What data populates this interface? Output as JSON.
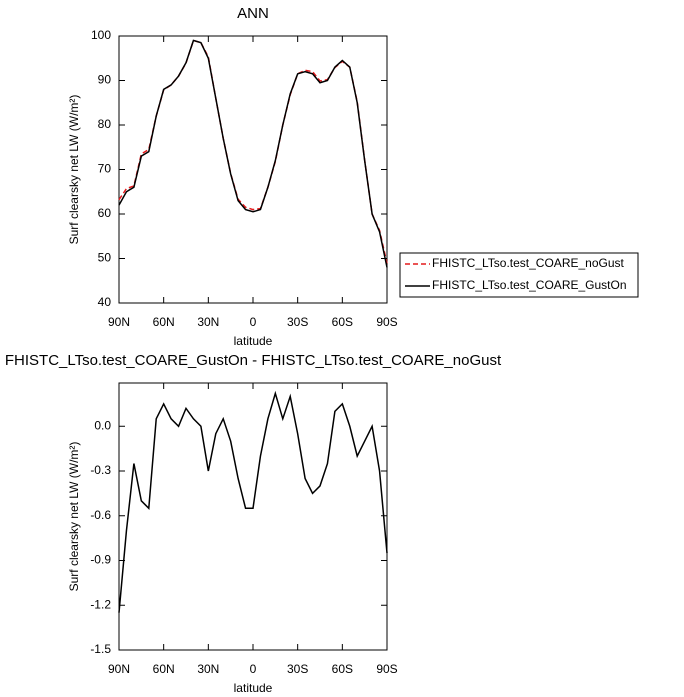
{
  "chart_data": [
    {
      "type": "line",
      "title": "ANN",
      "xlabel": "latitude",
      "ylabel": "Surf clearsky net LW (W/m²)",
      "x": [
        90,
        85,
        80,
        75,
        70,
        65,
        60,
        55,
        50,
        45,
        40,
        35,
        30,
        25,
        20,
        15,
        10,
        5,
        0,
        -5,
        -10,
        -15,
        -20,
        -25,
        -30,
        -35,
        -40,
        -45,
        -50,
        -55,
        -60,
        -65,
        -70,
        -75,
        -80,
        -85,
        -90
      ],
      "xlim": [
        90,
        -90
      ],
      "xticks": [
        {
          "value": 90,
          "label": "90N"
        },
        {
          "value": 60,
          "label": "60N"
        },
        {
          "value": 30,
          "label": "30N"
        },
        0,
        {
          "value": -30,
          "label": "30S"
        },
        {
          "value": -60,
          "label": "60S"
        },
        {
          "value": -90,
          "label": "90S"
        }
      ],
      "ylim": [
        40,
        100
      ],
      "yticks": [
        40,
        50,
        60,
        70,
        80,
        90,
        100
      ],
      "legend": "outside-right",
      "series": [
        {
          "name": "FHISTC_LTso.test_COARE_noGust",
          "color": "#e41a1c",
          "style": "dashed",
          "values": [
            63.2,
            65.7,
            66.3,
            73.5,
            74.5,
            82,
            87.9,
            89,
            91,
            93.9,
            99,
            98.5,
            95.3,
            86,
            77,
            69.1,
            63.3,
            61.5,
            61,
            61.2,
            66,
            71.8,
            80,
            86.8,
            91.5,
            92.3,
            92,
            89.9,
            90.2,
            92.9,
            94.3,
            93,
            85.2,
            72.1,
            60,
            56.3,
            48.9
          ]
        },
        {
          "name": "FHISTC_LTso.test_COARE_GustOn",
          "color": "#000000",
          "style": "solid",
          "values": [
            62,
            65,
            66,
            73,
            74,
            82,
            88,
            89,
            91,
            94,
            99,
            98.5,
            95,
            86,
            77,
            69,
            63,
            61,
            60.5,
            61,
            66,
            72,
            80,
            87,
            91.5,
            92,
            91.5,
            89.5,
            90,
            93,
            94.5,
            93,
            85,
            72,
            60,
            56,
            48
          ]
        }
      ]
    },
    {
      "type": "line",
      "title": "FHISTC_LTso.test_COARE_GustOn - FHISTC_LTso.test_COARE_noGust",
      "xlabel": "latitude",
      "ylabel": "Surf clearsky net LW (W/m²)",
      "x": [
        90,
        85,
        80,
        75,
        70,
        65,
        60,
        55,
        50,
        45,
        40,
        35,
        30,
        25,
        20,
        15,
        10,
        5,
        0,
        -5,
        -10,
        -15,
        -20,
        -25,
        -30,
        -35,
        -40,
        -45,
        -50,
        -55,
        -60,
        -65,
        -70,
        -75,
        -80,
        -85,
        -90
      ],
      "xlim": [
        90,
        -90
      ],
      "xticks": [
        {
          "value": 90,
          "label": "90N"
        },
        {
          "value": 60,
          "label": "60N"
        },
        {
          "value": 30,
          "label": "30N"
        },
        0,
        {
          "value": -30,
          "label": "30S"
        },
        {
          "value": -60,
          "label": "60S"
        },
        {
          "value": -90,
          "label": "90S"
        }
      ],
      "ylim": [
        -1.5,
        0.29
      ],
      "yticks": [
        -1.5,
        -1.2,
        -0.9,
        -0.6,
        -0.3,
        {
          "value": 0,
          "label": "0.0"
        }
      ],
      "series": [
        {
          "color": "#000000",
          "style": "solid",
          "values": [
            -1.25,
            -0.7,
            -0.25,
            -0.5,
            -0.55,
            0.05,
            0.15,
            0.05,
            0.0,
            0.12,
            0.05,
            0.0,
            -0.3,
            -0.05,
            0.05,
            -0.1,
            -0.35,
            -0.55,
            -0.55,
            -0.2,
            0.05,
            0.22,
            0.05,
            0.2,
            -0.05,
            -0.35,
            -0.45,
            -0.4,
            -0.25,
            0.1,
            0.15,
            0.0,
            -0.2,
            -0.1,
            0.0,
            -0.3,
            -0.85
          ]
        }
      ]
    }
  ]
}
